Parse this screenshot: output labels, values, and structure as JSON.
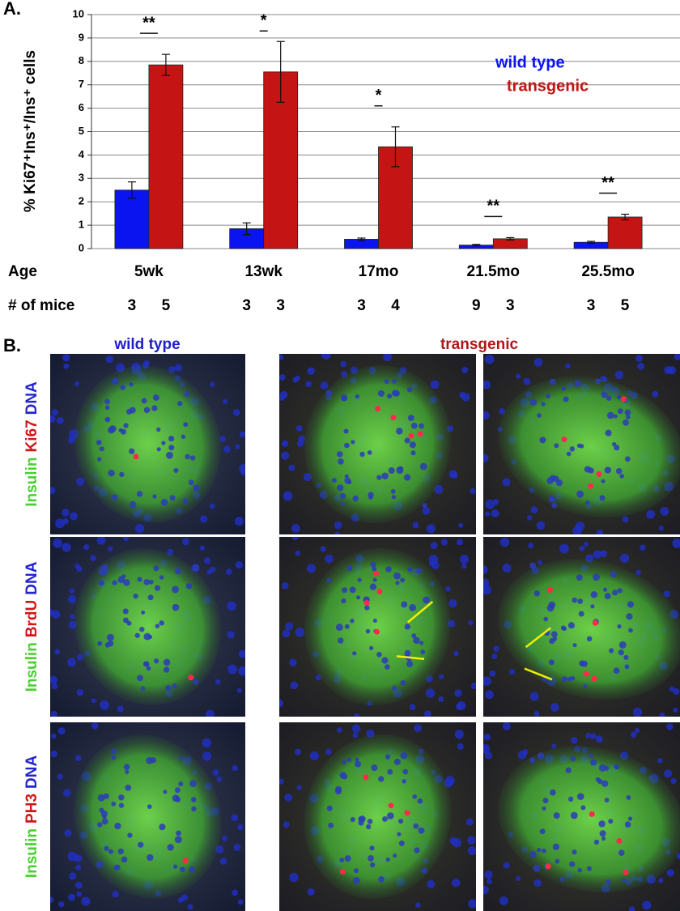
{
  "panel_labels": [
    "A.",
    "B."
  ],
  "chart_data": {
    "type": "bar",
    "y_label": "% Ki67⁺Ins⁺/Ins⁺ cells",
    "categories": [
      "5wk",
      "13wk",
      "17mo",
      "21.5mo",
      "25.5mo"
    ],
    "category_row_label": "Age",
    "count_row_label": "# of mice",
    "series": [
      {
        "name": "wild type",
        "color": "#0a14f0",
        "values": [
          2.5,
          0.85,
          0.4,
          0.15,
          0.27
        ],
        "errors": [
          0.35,
          0.25,
          0.05,
          0.03,
          0.04
        ],
        "counts": [
          3,
          3,
          3,
          9,
          3
        ]
      },
      {
        "name": "transgenic",
        "color": "#c41414",
        "values": [
          7.85,
          7.55,
          4.35,
          0.42,
          1.35
        ],
        "errors": [
          0.45,
          1.3,
          0.85,
          0.05,
          0.12
        ],
        "counts": [
          5,
          3,
          4,
          3,
          5
        ]
      }
    ],
    "significance": [
      "**",
      "*",
      "*",
      "**",
      "**"
    ],
    "ylim": [
      0,
      10
    ],
    "yticks": [
      0,
      1,
      2,
      3,
      4,
      5,
      6,
      7,
      8,
      9,
      10
    ],
    "grid": true,
    "legend": "upper right"
  },
  "panel_b": {
    "column_headers": [
      "wild type",
      "transgenic"
    ],
    "row_labels": [
      [
        "Insulin",
        "Ki67",
        "DNA"
      ],
      [
        "Insulin",
        "BrdU",
        "DNA"
      ],
      [
        "Insulin",
        "PH3",
        "DNA"
      ]
    ]
  }
}
